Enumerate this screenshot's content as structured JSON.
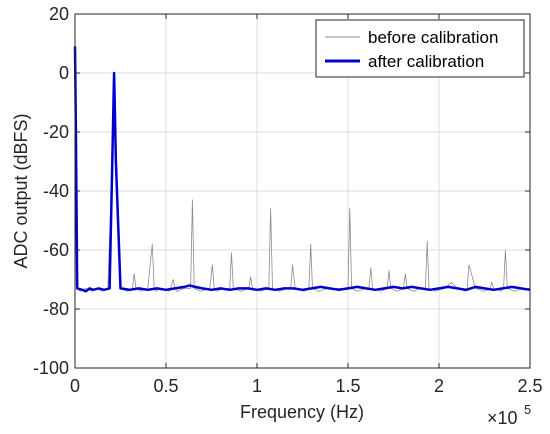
{
  "chart_data": {
    "type": "line",
    "xlabel": "Frequency (Hz)",
    "ylabel": "ADC output (dBFS)",
    "x_exponent_label": "×10",
    "x_exponent_power": "5",
    "x_scale": 100000,
    "xlim": [
      0,
      2.5
    ],
    "ylim": [
      -100,
      20
    ],
    "x_ticks": [
      0,
      0.5,
      1,
      1.5,
      2,
      2.5
    ],
    "x_tick_labels": [
      "0",
      "0.5",
      "1",
      "1.5",
      "2",
      "2.5"
    ],
    "y_ticks": [
      20,
      0,
      -20,
      -40,
      -60,
      -80,
      -100
    ],
    "y_tick_labels": [
      "20",
      "0",
      "-20",
      "-40",
      "-60",
      "-80",
      "-100"
    ],
    "grid": true,
    "legend_position": "top-right",
    "series": [
      {
        "name": "before calibration",
        "color": "#8c8c8c",
        "x": [
          0,
          0.005,
          0.012,
          0.03,
          0.06,
          0.09,
          0.12,
          0.15,
          0.18,
          0.205,
          0.215,
          0.225,
          0.25,
          0.29,
          0.315,
          0.325,
          0.335,
          0.36,
          0.4,
          0.425,
          0.435,
          0.445,
          0.47,
          0.52,
          0.54,
          0.55,
          0.56,
          0.6,
          0.635,
          0.645,
          0.655,
          0.69,
          0.74,
          0.755,
          0.765,
          0.775,
          0.82,
          0.85,
          0.86,
          0.87,
          0.91,
          0.955,
          0.965,
          0.975,
          1.02,
          1.065,
          1.075,
          1.085,
          1.12,
          1.17,
          1.185,
          1.195,
          1.21,
          1.26,
          1.285,
          1.295,
          1.305,
          1.34,
          1.39,
          1.5,
          1.51,
          1.52,
          1.55,
          1.6,
          1.615,
          1.625,
          1.635,
          1.68,
          1.715,
          1.725,
          1.735,
          1.77,
          1.805,
          1.815,
          1.825,
          1.86,
          1.9,
          1.925,
          1.935,
          1.945,
          1.98,
          2.03,
          2.07,
          2.1,
          2.145,
          2.155,
          2.165,
          2.2,
          2.25,
          2.28,
          2.29,
          2.3,
          2.34,
          2.355,
          2.365,
          2.375,
          2.42,
          2.45,
          2.48,
          2.5
        ],
        "y": [
          9,
          -20,
          -73,
          -74,
          -73,
          -74,
          -73,
          -74,
          -73,
          -30,
          0,
          -30,
          -73,
          -74,
          -73,
          -68,
          -73,
          -74,
          -73,
          -58,
          -73,
          -74,
          -73,
          -74,
          -70,
          -73,
          -74,
          -73,
          -73,
          -43,
          -73,
          -74,
          -73,
          -65,
          -73,
          -74,
          -73,
          -73,
          -61,
          -73,
          -74,
          -73,
          -69,
          -73,
          -74,
          -73,
          -46,
          -73,
          -74,
          -73,
          -73,
          -65,
          -73,
          -74,
          -73,
          -58,
          -73,
          -74,
          -73,
          -73,
          -46,
          -73,
          -74,
          -73,
          -73,
          -66,
          -73,
          -74,
          -73,
          -67,
          -73,
          -74,
          -73,
          -68,
          -73,
          -74,
          -73,
          -73,
          -57,
          -73,
          -74,
          -73,
          -71,
          -73,
          -74,
          -73,
          -65,
          -73,
          -74,
          -73,
          -71,
          -73,
          -74,
          -73,
          -60,
          -73,
          -74,
          -73,
          -73,
          -73
        ]
      },
      {
        "name": "after calibration",
        "color": "#0000cc",
        "x": [
          0,
          0.005,
          0.012,
          0.04,
          0.06,
          0.08,
          0.1,
          0.13,
          0.16,
          0.19,
          0.205,
          0.215,
          0.225,
          0.25,
          0.3,
          0.35,
          0.4,
          0.45,
          0.5,
          0.55,
          0.6,
          0.63,
          0.66,
          0.7,
          0.75,
          0.8,
          0.85,
          0.9,
          0.95,
          1.0,
          1.05,
          1.1,
          1.15,
          1.2,
          1.25,
          1.3,
          1.35,
          1.4,
          1.45,
          1.5,
          1.55,
          1.6,
          1.65,
          1.7,
          1.75,
          1.8,
          1.85,
          1.9,
          1.95,
          2.0,
          2.05,
          2.1,
          2.15,
          2.2,
          2.25,
          2.3,
          2.35,
          2.4,
          2.45,
          2.5
        ],
        "y": [
          9,
          -20,
          -73,
          -73.5,
          -74,
          -73,
          -73.5,
          -73,
          -73.5,
          -73,
          -30,
          0,
          -30,
          -73,
          -73.5,
          -73,
          -73.5,
          -73,
          -73.5,
          -73,
          -72.5,
          -72,
          -72.5,
          -73,
          -73.5,
          -73,
          -73.5,
          -73,
          -73,
          -73.5,
          -73,
          -73.5,
          -73,
          -73,
          -73.5,
          -73,
          -72.5,
          -73,
          -73.5,
          -73,
          -72.5,
          -73,
          -73.5,
          -73,
          -72.5,
          -73,
          -72.5,
          -73,
          -73.5,
          -73,
          -72.5,
          -73,
          -73.5,
          -72.5,
          -73,
          -73.5,
          -73,
          -72.5,
          -73,
          -73.5
        ]
      }
    ]
  }
}
